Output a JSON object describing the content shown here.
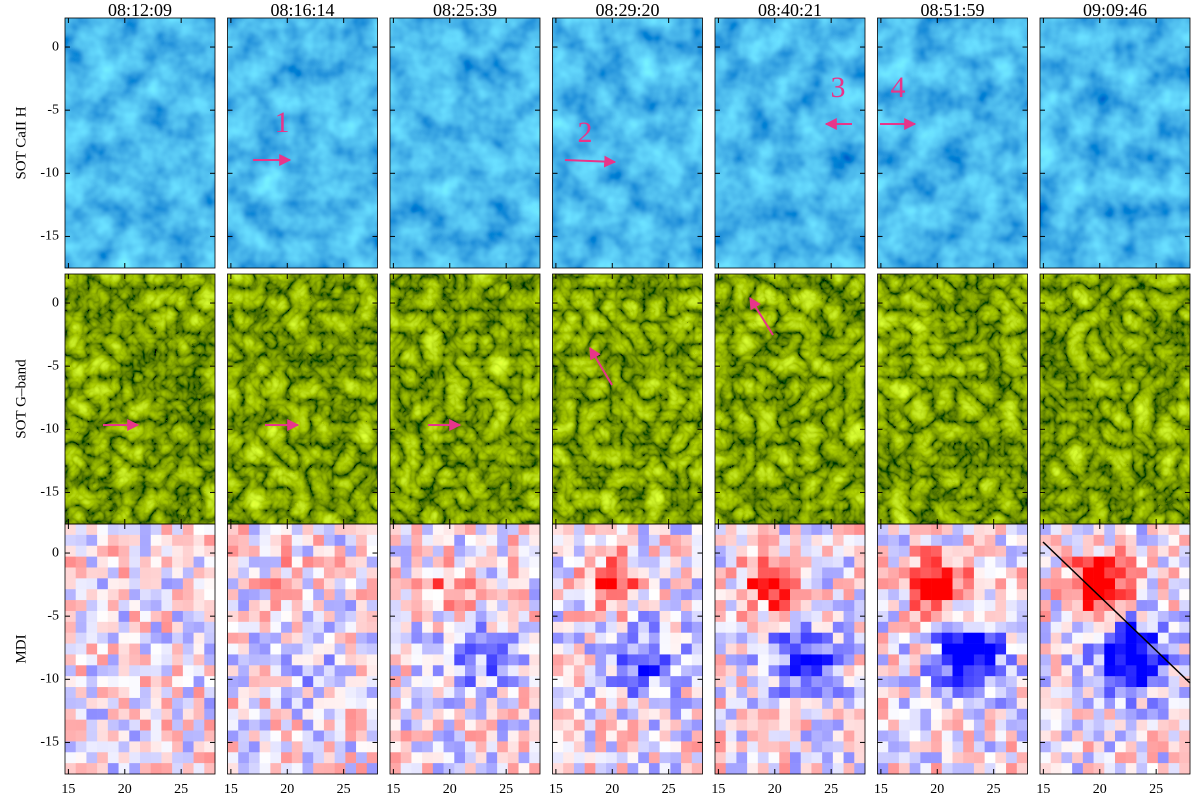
{
  "figure": {
    "columns": [
      "08:12:09",
      "08:16:14",
      "08:25:39",
      "08:29:20",
      "08:40:21",
      "08:51:59",
      "09:09:46"
    ],
    "rows": [
      "SOT CaII H",
      "SOT G–band",
      "MDI"
    ],
    "ylim": [
      -17.5,
      2.3
    ],
    "yticks": [
      0,
      -5,
      -10,
      -15
    ],
    "xlim": [
      14.7,
      28
    ],
    "xticks": [
      15,
      20,
      25
    ],
    "annotations": [
      "1",
      "2",
      "3",
      "4"
    ]
  }
}
